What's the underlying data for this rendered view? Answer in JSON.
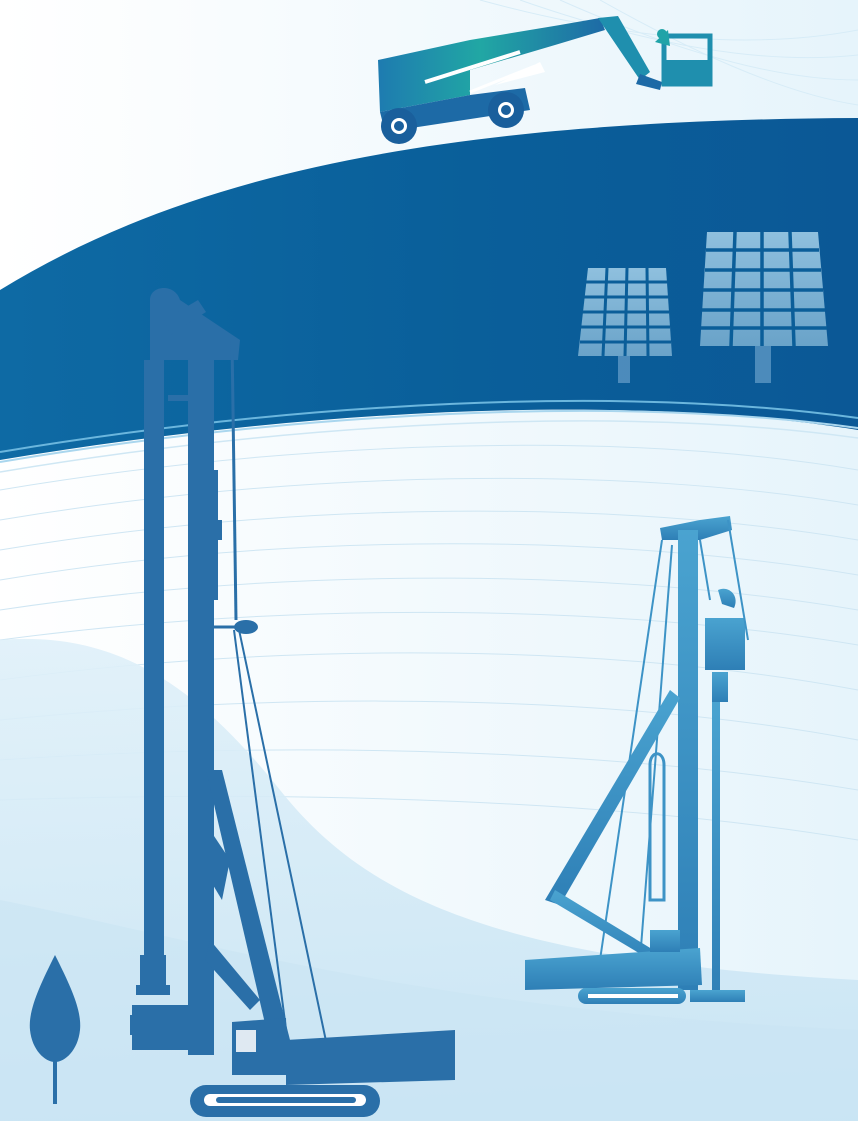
{
  "illustration": {
    "subjects": [
      "aerial-work-platform",
      "solar-panel",
      "solar-panel",
      "rotary-drilling-rig",
      "pile-driving-rig",
      "tree"
    ]
  },
  "colors": {
    "background": "#ffffff",
    "sky_light": "#eaf6fc",
    "band_dark": "#085a92",
    "band_mid": "#1a7fb5",
    "band_light": "#3d9fd0",
    "lower_wave": "#cfe9f6",
    "rig_main": "#2a6fa8",
    "rig_light": "#3c93c8",
    "lift_start": "#1fb3a6",
    "lift_end": "#1d6fa8",
    "solar_panel": "#7fb4d6",
    "tree": "#2a6fa8"
  }
}
